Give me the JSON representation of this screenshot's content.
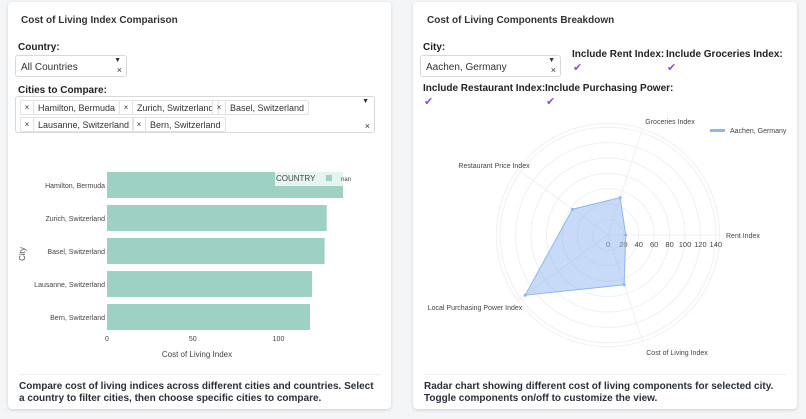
{
  "left": {
    "title": "Cost of Living Index Comparison",
    "country_label": "Country:",
    "country_value": "All Countries",
    "cities_label": "Cities to Compare:",
    "selected_cities": [
      "Hamilton, Bermuda",
      "Zurich, Switzerland",
      "Basel, Switzerland",
      "Lausanne, Switzerland",
      "Bern, Switzerland"
    ],
    "description": "Compare cost of living indices across different cities and countries. Select a country to filter cities, then choose specific cities to compare."
  },
  "right": {
    "title": "Cost of Living Components Breakdown",
    "city_label": "City:",
    "city_value": "Aachen, Germany",
    "toggles": [
      {
        "label": "Include Rent Index:",
        "checked": true
      },
      {
        "label": "Include Groceries Index:",
        "checked": true
      },
      {
        "label": "Include Restaurant Index:",
        "checked": true
      },
      {
        "label": "Include Purchasing Power:",
        "checked": true
      }
    ],
    "description": "Radar chart showing different cost of living components for selected city. Toggle components on/off to customize the view."
  },
  "chart_data": [
    {
      "type": "bar",
      "orientation": "horizontal",
      "categories": [
        "Hamilton, Bermuda",
        "Zurich, Switzerland",
        "Basel, Switzerland",
        "Lausanne, Switzerland",
        "Bern, Switzerland"
      ],
      "values": [
        137.6,
        128.1,
        126.9,
        119.6,
        118.4
      ],
      "xlabel": "Cost of Living Index",
      "ylabel": "City",
      "xticks": [
        0,
        50,
        100
      ],
      "xlim": [
        0,
        140
      ],
      "legend": {
        "title": "COUNTRY",
        "entries": [
          "nan"
        ],
        "placement": "top-right"
      },
      "color": "#9dd1c3"
    },
    {
      "type": "radar",
      "axes": [
        "Rent Index",
        "Groceries Index",
        "Restaurant Price Index",
        "Local Purchasing Power Index",
        "Cost of Living Index"
      ],
      "series": [
        {
          "name": "Aachen, Germany",
          "values": [
            23,
            51,
            57,
            133,
            68
          ]
        }
      ],
      "radial_ticks": [
        0,
        20,
        40,
        60,
        80,
        100,
        120,
        140
      ],
      "rlim": [
        0,
        145
      ],
      "legend_placement": "top-right",
      "color": "#8fb6f0"
    }
  ]
}
